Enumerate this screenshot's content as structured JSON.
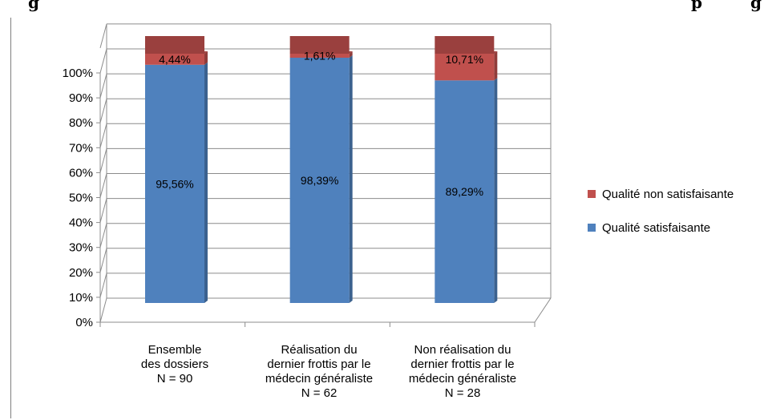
{
  "chart_data": {
    "type": "bar",
    "stacked": true,
    "percent_stacked": true,
    "three_d": true,
    "categories": [
      "Ensemble\ndes dossiers\nN = 90",
      "Réalisation du\ndernier frottis par le\nmédecin généraliste\nN = 62",
      "Non réalisation du\ndernier frottis par le\nmédecin généraliste\nN = 28"
    ],
    "series": [
      {
        "name": "Qualité satisfaisante",
        "values": [
          95.56,
          98.39,
          89.29
        ],
        "labels": [
          "95,56%",
          "98,39%",
          "89,29%"
        ],
        "color": "#4f81bd"
      },
      {
        "name": "Qualité non satisfaisante",
        "values": [
          4.44,
          1.61,
          10.71
        ],
        "labels": [
          "4,44%",
          "1,61%",
          "10,71%"
        ],
        "color": "#c0504d"
      }
    ],
    "y_ticks": [
      "0%",
      "10%",
      "20%",
      "30%",
      "40%",
      "50%",
      "60%",
      "70%",
      "80%",
      "90%",
      "100%"
    ],
    "ylim": [
      0,
      100
    ],
    "grid": true,
    "legend_position": "right"
  },
  "top_text": [
    "g",
    "p",
    "g"
  ]
}
